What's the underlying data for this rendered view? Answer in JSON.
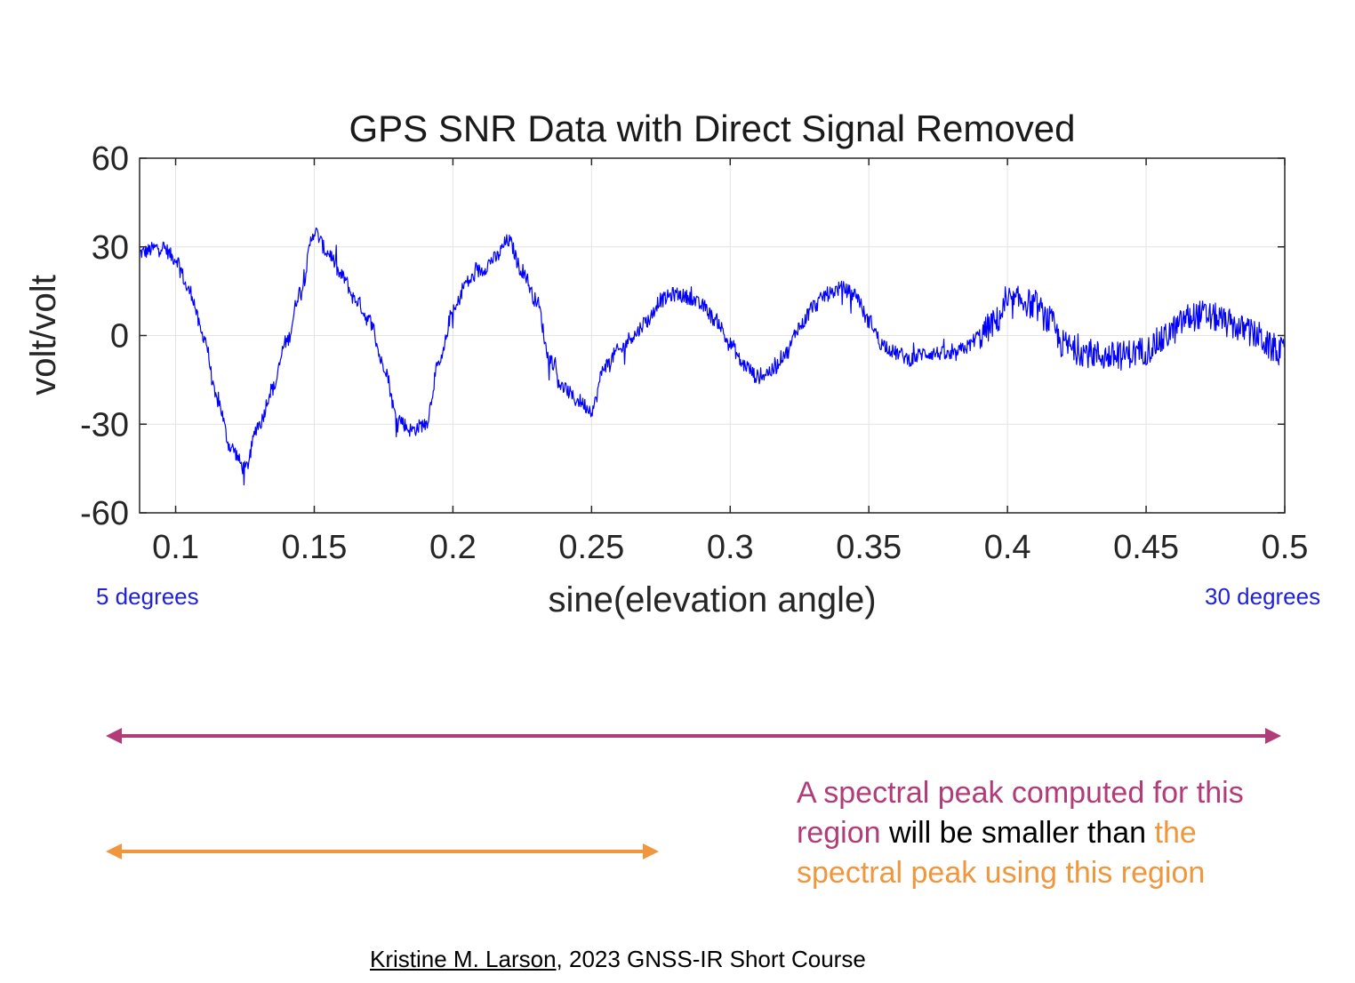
{
  "chart_data": {
    "type": "line",
    "title": "GPS SNR Data with Direct Signal Removed",
    "xlabel": "sine(elevation angle)",
    "ylabel": "volt/volt",
    "xlim": [
      0.087,
      0.5
    ],
    "ylim": [
      -60,
      60
    ],
    "x_ticks": [
      "0.1",
      "0.15",
      "0.2",
      "0.25",
      "0.3",
      "0.35",
      "0.4",
      "0.45",
      "0.5"
    ],
    "y_ticks": [
      "60",
      "30",
      "0",
      "-30",
      "-60"
    ],
    "grid": true,
    "series": [
      {
        "color": "#0000ff",
        "x": [
          0.087,
          0.095,
          0.1,
          0.105,
          0.11,
          0.115,
          0.12,
          0.125,
          0.13,
          0.135,
          0.14,
          0.145,
          0.15,
          0.155,
          0.16,
          0.165,
          0.17,
          0.175,
          0.18,
          0.185,
          0.19,
          0.195,
          0.2,
          0.205,
          0.21,
          0.215,
          0.22,
          0.225,
          0.23,
          0.235,
          0.24,
          0.245,
          0.25,
          0.255,
          0.26,
          0.265,
          0.27,
          0.275,
          0.28,
          0.285,
          0.29,
          0.295,
          0.3,
          0.305,
          0.31,
          0.315,
          0.32,
          0.325,
          0.33,
          0.335,
          0.34,
          0.345,
          0.35,
          0.355,
          0.36,
          0.365,
          0.37,
          0.375,
          0.38,
          0.385,
          0.39,
          0.395,
          0.4,
          0.405,
          0.41,
          0.415,
          0.42,
          0.425,
          0.43,
          0.435,
          0.44,
          0.445,
          0.45,
          0.455,
          0.46,
          0.465,
          0.47,
          0.475,
          0.48,
          0.485,
          0.49,
          0.495,
          0.5
        ],
        "y": [
          28,
          30,
          26,
          15,
          0,
          -22,
          -38,
          -45,
          -30,
          -18,
          -2,
          15,
          35,
          28,
          20,
          12,
          5,
          -10,
          -28,
          -32,
          -30,
          -10,
          8,
          18,
          22,
          26,
          32,
          22,
          12,
          -8,
          -18,
          -22,
          -25,
          -10,
          -5,
          0,
          5,
          12,
          14,
          13,
          10,
          5,
          -3,
          -10,
          -14,
          -12,
          -6,
          3,
          10,
          14,
          16,
          14,
          5,
          -3,
          -6,
          -8,
          -6,
          -6,
          -7,
          -4,
          0,
          4,
          10,
          12,
          10,
          5,
          -3,
          -5,
          -6,
          -7,
          -7,
          -6,
          -5,
          -2,
          2,
          6,
          7,
          6,
          4,
          2,
          0,
          -4,
          -6
        ]
      }
    ]
  },
  "annotations": {
    "range_start": "5 degrees",
    "range_end": "30 degrees",
    "arrow_colors": {
      "full_range": "#b23c78",
      "low_range": "#f0963c"
    },
    "note_part1": "A spectral peak computed for this region ",
    "note_part2": " will be smaller than ",
    "note_part3": "the spectral peak using this region"
  },
  "credit": {
    "author": "Kristine M. Larson",
    "rest": ", 2023 GNSS-IR Short Course"
  }
}
